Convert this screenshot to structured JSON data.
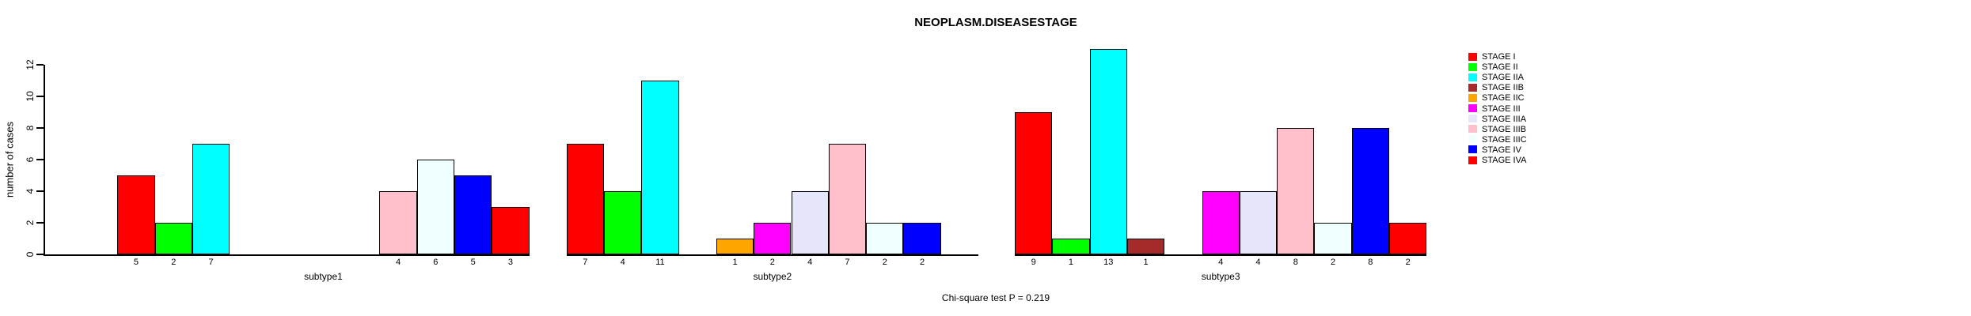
{
  "title": "NEOPLASM.DISEASESTAGE",
  "caption": "Chi-square test P = 0.219",
  "y_axis_label": "number of cases",
  "chart_data": {
    "type": "bar",
    "title": "NEOPLASM.DISEASESTAGE",
    "xlabel": "",
    "ylabel": "number of cases",
    "ylim": [
      0,
      12
    ],
    "yticks": [
      0,
      2,
      4,
      6,
      8,
      10,
      12
    ],
    "grid": false,
    "legend_position": "right",
    "bar_value_labels_shown": true,
    "annotation": "Chi-square test P = 0.219",
    "series": [
      {
        "name": "STAGE I",
        "color": "#FF0000",
        "values": [
          5,
          7,
          9
        ]
      },
      {
        "name": "STAGE II",
        "color": "#00FF00",
        "values": [
          2,
          4,
          1
        ]
      },
      {
        "name": "STAGE IIA",
        "color": "#00FFFF",
        "values": [
          7,
          11,
          13
        ]
      },
      {
        "name": "STAGE IIB",
        "color": "#A52A2A",
        "values": [
          0,
          0,
          1
        ]
      },
      {
        "name": "STAGE IIC",
        "color": "#FFA500",
        "values": [
          0,
          1,
          0
        ]
      },
      {
        "name": "STAGE III",
        "color": "#FF00FF",
        "values": [
          0,
          2,
          4
        ]
      },
      {
        "name": "STAGE IIIA",
        "color": "#E6E6FA",
        "values": [
          0,
          4,
          4
        ]
      },
      {
        "name": "STAGE IIIB",
        "color": "#FFC0CB",
        "values": [
          4,
          7,
          8
        ]
      },
      {
        "name": "STAGE IIIC",
        "color": "#F0FFFF",
        "values": [
          6,
          2,
          2
        ]
      },
      {
        "name": "STAGE IV",
        "color": "#0000FF",
        "values": [
          5,
          2,
          8
        ]
      },
      {
        "name": "STAGE IVA",
        "color": "#FF0000",
        "values": [
          3,
          0,
          2
        ]
      }
    ],
    "categories": [
      "subtype1",
      "subtype2",
      "subtype3"
    ]
  }
}
